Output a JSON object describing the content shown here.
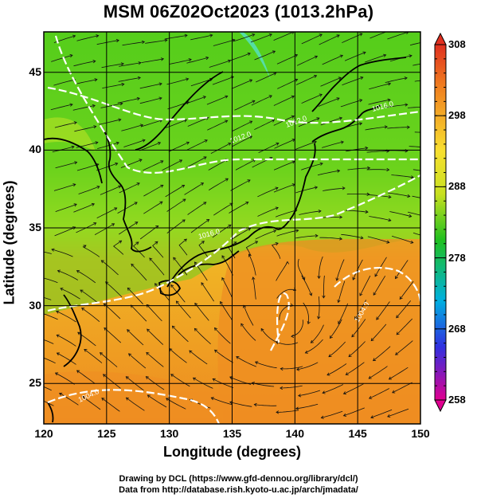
{
  "title": "MSM 06Z02Oct2023 (1013.2hPa)",
  "map": {
    "xlabel": "Longitude (degrees)",
    "ylabel": "Latitude  (degrees)",
    "lon_range": [
      120,
      150
    ],
    "lat_range": [
      22.4,
      47.6
    ],
    "x_ticks": [
      "120",
      "125",
      "130",
      "135",
      "140",
      "145",
      "150"
    ],
    "y_ticks": [
      "25",
      "30",
      "35",
      "40",
      "45"
    ],
    "grid": true,
    "shaded_field_unit": "K",
    "colors": {
      "cold": "#d7e833",
      "mid_green": "#4cd219",
      "warm_orange": "#f08a22",
      "contour": "#ffffff",
      "coast": "#000000"
    },
    "isobar_labels": [
      "1012.0",
      "1012.0",
      "1016.0",
      "1016.0",
      "1004.0",
      "1004.0"
    ]
  },
  "colorbar": {
    "tick_labels": [
      "308",
      "298",
      "288",
      "278",
      "268",
      "258"
    ],
    "range": [
      258,
      308
    ],
    "stops": [
      "#e00090",
      "#3030e0",
      "#00b0e0",
      "#20c020",
      "#c8e020",
      "#f8e030",
      "#f08020",
      "#e03020"
    ]
  },
  "credits": {
    "line1": "Drawing by DCL (https://www.gfd-dennou.org/library/dcl/)",
    "line2": "Data from http://database.rish.kyoto-u.ac.jp/arch/jmadata/"
  }
}
